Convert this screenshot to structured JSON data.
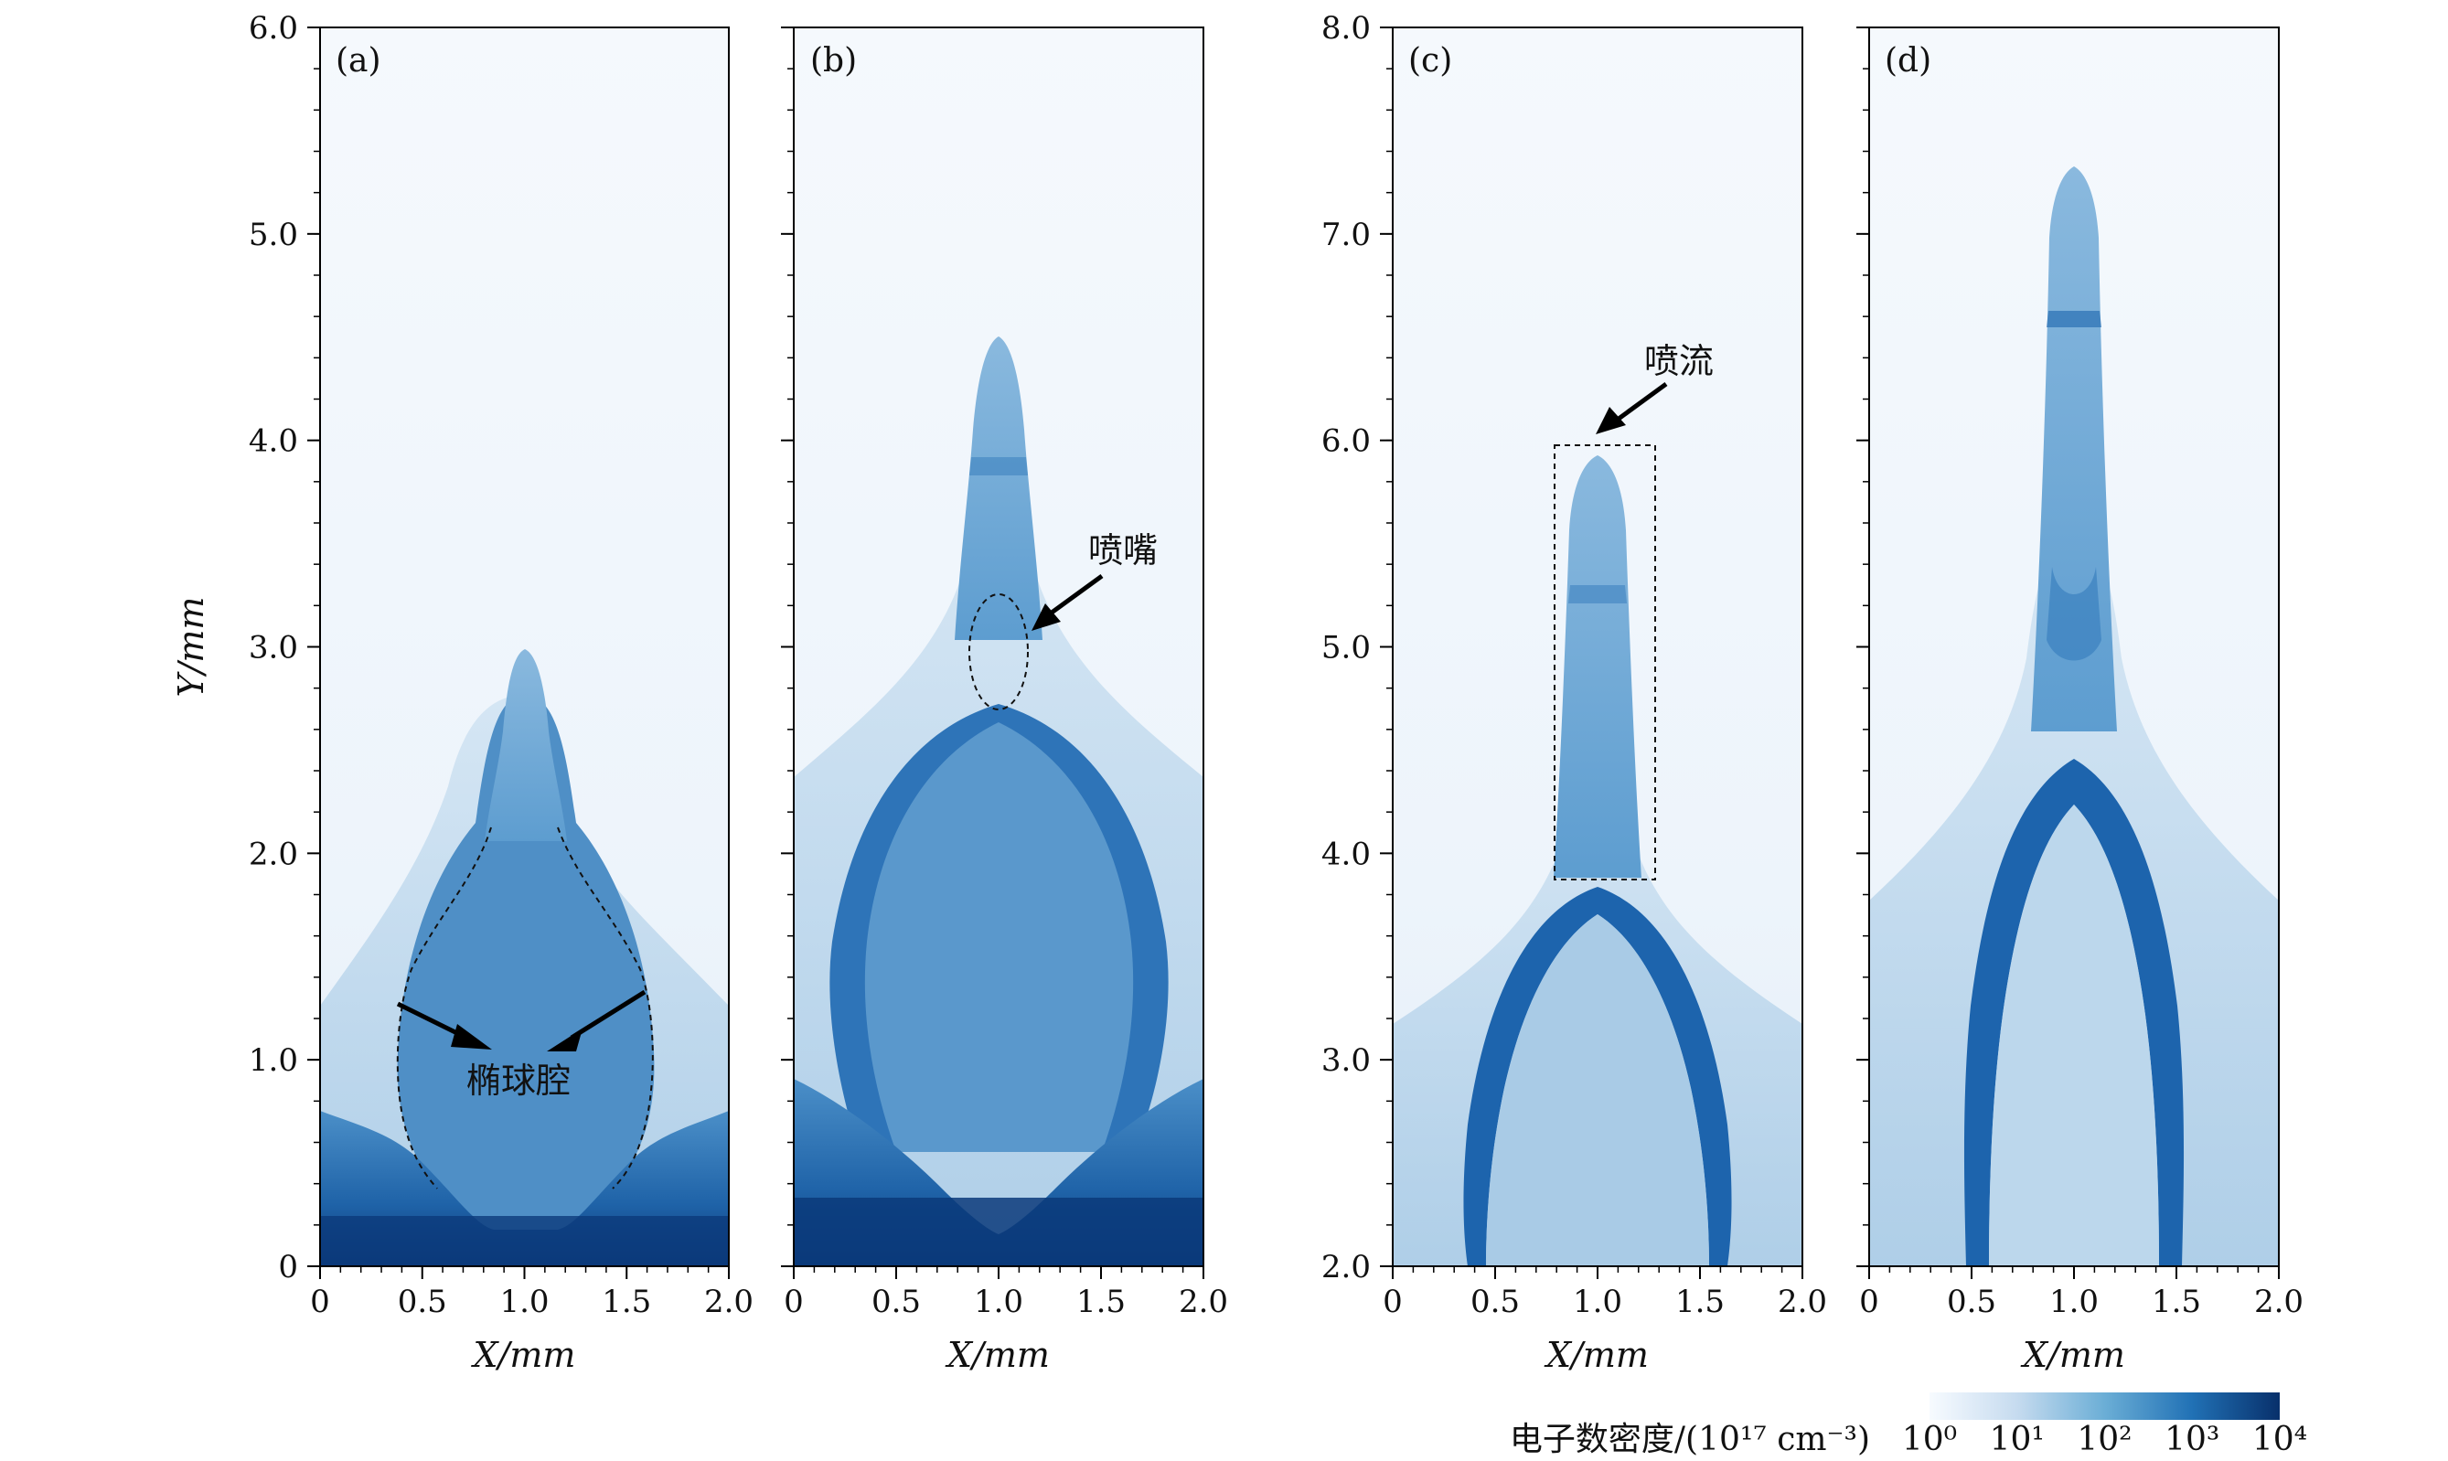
{
  "chart_data": [
    {
      "type": "heatmap",
      "panel": "(a)",
      "xlabel": "X/mm",
      "ylabel": "Y/mm",
      "xlim": [
        0,
        2.0
      ],
      "ylim": [
        0,
        6.0
      ],
      "xticks": [
        "0",
        "0.5",
        "1.0",
        "1.5",
        "2.0"
      ],
      "yticks": [
        "0",
        "1.0",
        "2.0",
        "3.0",
        "4.0",
        "5.0",
        "6.0"
      ],
      "tip_height": 2.95,
      "annotation": "椭球腔"
    },
    {
      "type": "heatmap",
      "panel": "(b)",
      "xlabel": "X/mm",
      "xlim": [
        0,
        2.0
      ],
      "ylim": [
        0,
        6.0
      ],
      "xticks": [
        "0",
        "0.5",
        "1.0",
        "1.5",
        "2.0"
      ],
      "tip_height": 4.48,
      "annotation": "喷嘴"
    },
    {
      "type": "heatmap",
      "panel": "(c)",
      "xlabel": "X/mm",
      "xlim": [
        0,
        2.0
      ],
      "ylim": [
        2.0,
        8.0
      ],
      "xticks": [
        "0",
        "0.5",
        "1.0",
        "1.5",
        "2.0"
      ],
      "yticks": [
        "2.0",
        "3.0",
        "4.0",
        "5.0",
        "6.0",
        "7.0",
        "8.0"
      ],
      "tip_height": 5.9,
      "annotation": "喷流"
    },
    {
      "type": "heatmap",
      "panel": "(d)",
      "xlabel": "X/mm",
      "xlim": [
        0,
        2.0
      ],
      "ylim": [
        2.0,
        8.0
      ],
      "xticks": [
        "0",
        "0.5",
        "1.0",
        "1.5",
        "2.0"
      ],
      "tip_height": 7.3
    }
  ],
  "colorbar": {
    "label": "电子数密度/(10¹⁷ cm⁻³)",
    "ticks": [
      "10⁰",
      "10¹",
      "10²",
      "10³",
      "10⁴"
    ],
    "color_low": "#f7fbff",
    "color_high": "#08306b"
  }
}
